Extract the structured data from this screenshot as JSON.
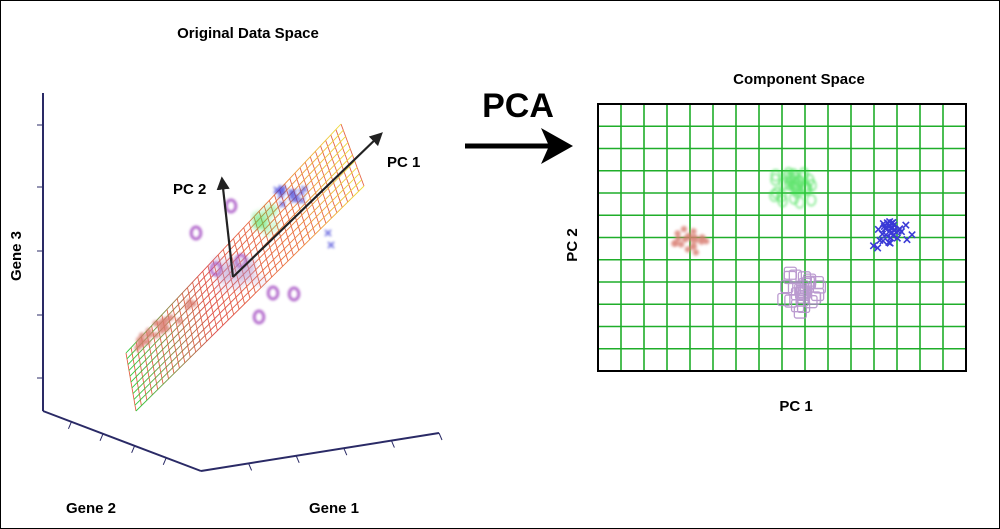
{
  "left_panel": {
    "title": "Original Data Space",
    "axis_labels": {
      "gene1": "Gene 1",
      "gene2": "Gene 2",
      "gene3": "Gene 3"
    },
    "vectors": {
      "pc1": "PC 1",
      "pc2": "PC 2"
    }
  },
  "transform": {
    "label": "PCA"
  },
  "right_panel": {
    "title": "Component Space",
    "axis_labels": {
      "x": "PC 1",
      "y": "PC 2"
    },
    "grid_color": "#1fae2a"
  },
  "markers": {
    "cross": {
      "symbol": "x",
      "color": "#3a3ad6"
    },
    "ring": {
      "symbol": "circle",
      "color": "#a24ac1"
    },
    "star": {
      "symbol": "asterisk",
      "color": "#d87a6e"
    },
    "round": {
      "symbol": "circle",
      "color": "#33dd44"
    },
    "square": {
      "symbol": "square",
      "color": "#b08ac8"
    }
  }
}
